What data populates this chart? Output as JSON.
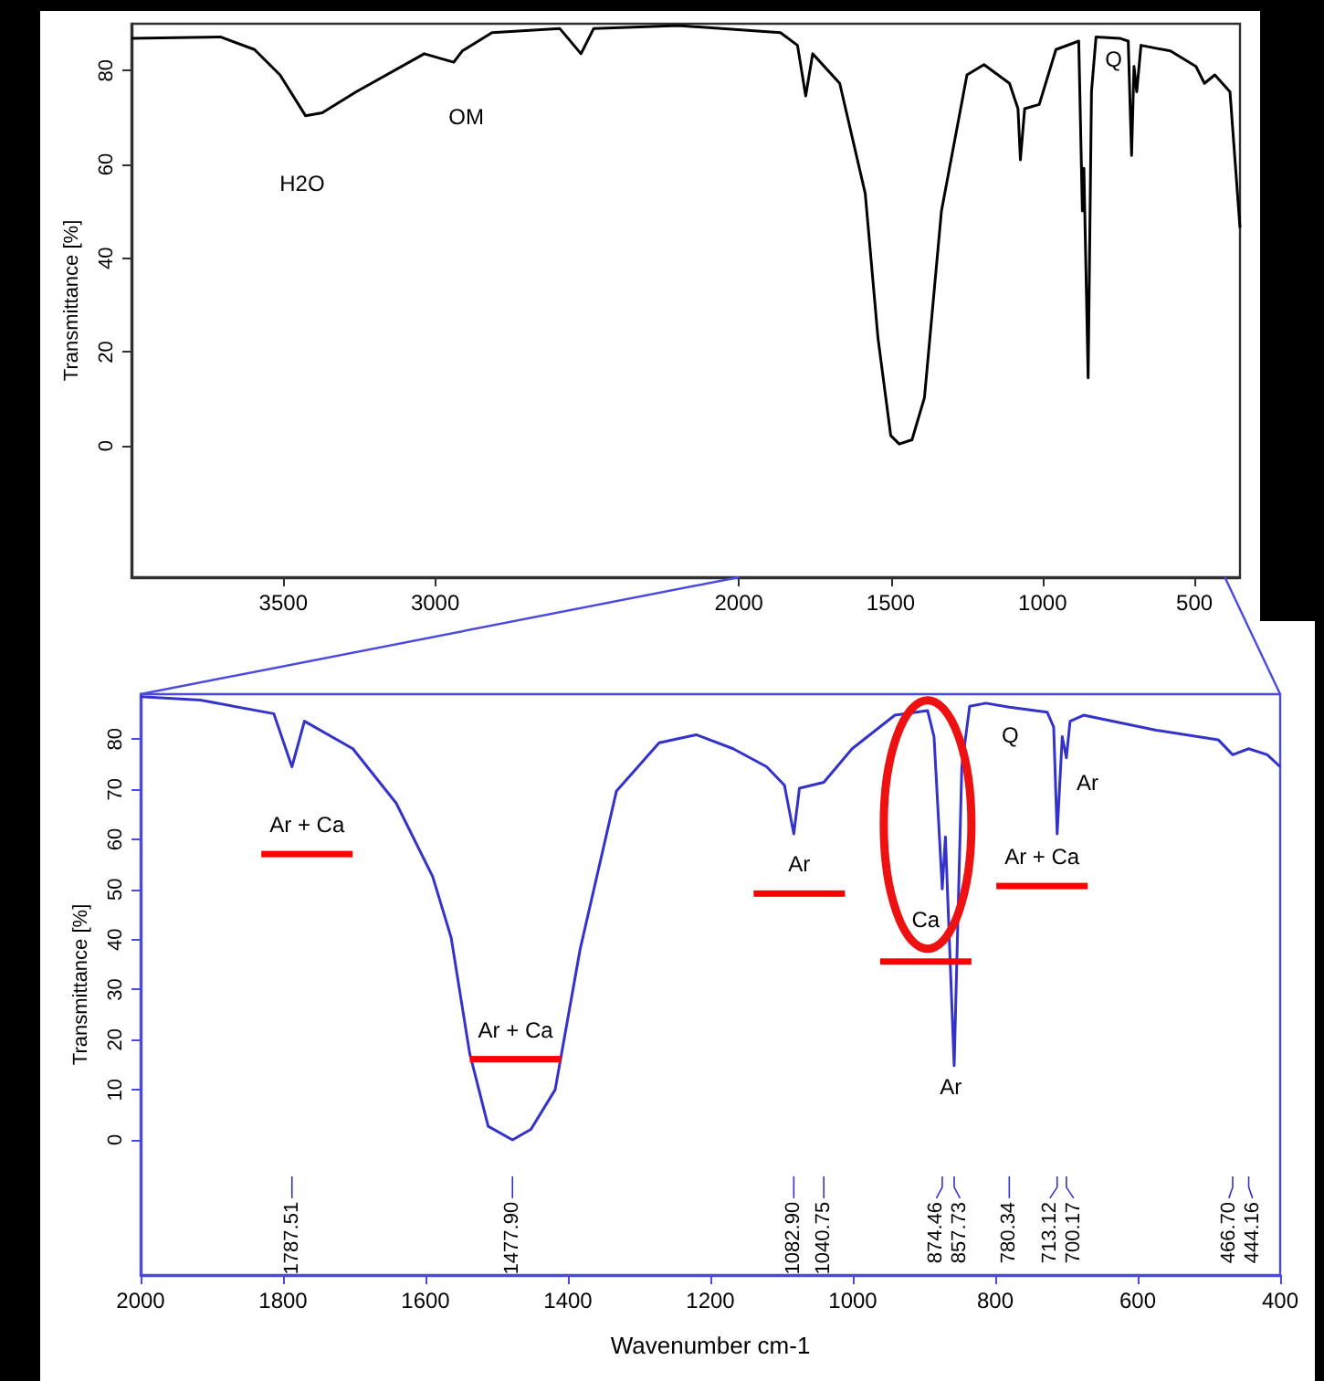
{
  "chart_data": [
    {
      "type": "line",
      "ylabel": "Transmittance [%]",
      "xlim": [
        4000,
        350
      ],
      "ylim": [
        -28,
        90
      ],
      "xticks": [
        3500,
        3000,
        2000,
        1500,
        1000,
        500
      ],
      "yticks": [
        0,
        20,
        40,
        60,
        80
      ],
      "series": [
        {
          "color": "#000000",
          "x": [
            4000,
            3707,
            3595,
            3511,
            3427,
            3372,
            3260,
            3036,
            2939,
            2911,
            2813,
            2590,
            2520,
            2478,
            2199,
            1863,
            1807,
            1780,
            1757,
            1668,
            1584,
            1542,
            1500,
            1472,
            1430,
            1389,
            1333,
            1249,
            1193,
            1109,
            1081,
            1073,
            1059,
            1011,
            956,
            881,
            869,
            864,
            850,
            839,
            824,
            746,
            718,
            707,
            699,
            690,
            676,
            579,
            495,
            467,
            433,
            383,
            350
          ],
          "values": [
            86.9,
            87.2,
            84.5,
            79.1,
            70.4,
            71,
            75.5,
            83.6,
            81.8,
            84.2,
            88.1,
            89,
            83.6,
            89,
            89.6,
            88.1,
            85.4,
            74.6,
            83.6,
            77.3,
            53.8,
            23,
            2.2,
            0.4,
            1.3,
            10.3,
            50.1,
            79.1,
            81.3,
            77.3,
            71.9,
            61,
            71.9,
            72.8,
            84.5,
            86.3,
            50.1,
            59.2,
            14.5,
            75.5,
            87.2,
            86.9,
            86.3,
            61.9,
            80.9,
            75.5,
            85.4,
            84.2,
            80.9,
            77.3,
            79.1,
            75.5,
            46.5
          ]
        }
      ],
      "annotations": [
        "H2O",
        "OM",
        "Q"
      ]
    },
    {
      "type": "line",
      "xlabel": "Wavenumber cm-1",
      "ylabel": "Transmittance [%]",
      "xlim": [
        2000,
        400
      ],
      "ylim": [
        -27,
        89
      ],
      "xticks": [
        2000,
        1800,
        1600,
        1400,
        1200,
        1000,
        800,
        600,
        400
      ],
      "yticks": [
        0,
        10,
        20,
        30,
        40,
        50,
        60,
        70,
        80
      ],
      "series": [
        {
          "color": "#3333cc",
          "x": [
            2000,
            1916,
            1813,
            1787.51,
            1770,
            1702,
            1641,
            1590,
            1564,
            1538,
            1512,
            1477.9,
            1452,
            1418,
            1383,
            1332,
            1272,
            1220,
            1168,
            1121,
            1096,
            1082.9,
            1075,
            1040.75,
            1001,
            941,
            895,
            886,
            874.46,
            870,
            857.73,
            847,
            836,
            813,
            780.34,
            727,
            718,
            713.12,
            706,
            700.17,
            695,
            676,
            574,
            487,
            466.7,
            444.16,
            418,
            400
          ],
          "values": [
            88.5,
            87.8,
            85.1,
            74.5,
            83.6,
            78.1,
            67.2,
            52.6,
            40.4,
            17.3,
            2.7,
            0,
            2.1,
            10,
            38,
            69.6,
            79.3,
            80.9,
            78.1,
            74.5,
            70.8,
            61.1,
            70.2,
            71.4,
            78.1,
            84.8,
            85.7,
            80.5,
            50.1,
            60.5,
            14.8,
            74.5,
            86.6,
            87.2,
            86.4,
            85.4,
            82.4,
            61.1,
            80.5,
            76.3,
            83.6,
            84.8,
            81.8,
            79.9,
            76.9,
            78.1,
            76.9,
            74.5
          ]
        }
      ],
      "annotations": [
        "Ar + Ca",
        "Ar + Ca",
        "Ar",
        "Ca",
        "Ar",
        "Q",
        "Ar + Ca",
        "Ar",
        {
          "text": "1787.51",
          "x": 1787.51
        },
        {
          "text": "1477.90",
          "x": 1477.9
        },
        {
          "text": "1082.90",
          "x": 1082.9
        },
        {
          "text": "1040.75",
          "x": 1040.75
        },
        {
          "text": "874.46",
          "x": 874.46
        },
        {
          "text": "857.73",
          "x": 857.73
        },
        {
          "text": "780.34",
          "x": 780.34
        },
        {
          "text": "713.12",
          "x": 713.12
        },
        {
          "text": "700.17",
          "x": 700.17
        },
        {
          "text": "466.70",
          "x": 466.7
        },
        {
          "text": "444.16",
          "x": 444.16
        }
      ]
    }
  ]
}
